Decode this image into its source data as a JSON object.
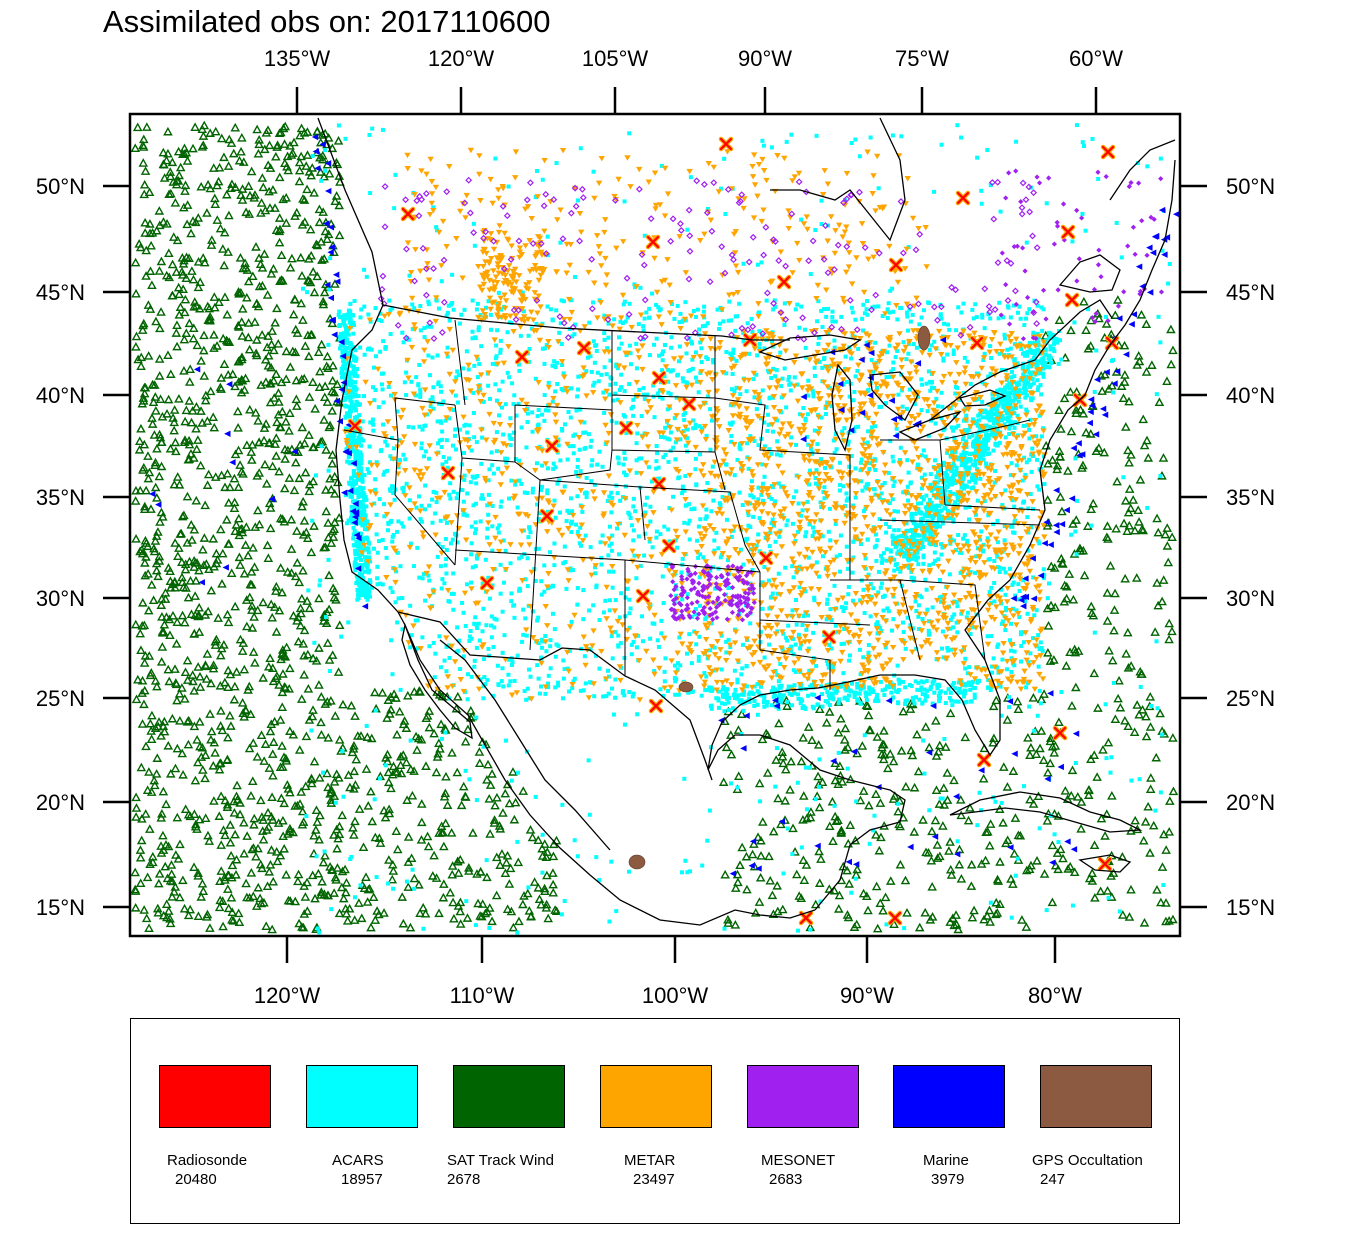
{
  "title": "Assimilated obs on: 2017110600",
  "top_axis_labels": [
    "135°W",
    "120°W",
    "105°W",
    "90°W",
    "75°W",
    "60°W"
  ],
  "bottom_axis_labels": [
    "120°W",
    "110°W",
    "100°W",
    "90°W",
    "80°W"
  ],
  "lat_labels": [
    "50°N",
    "45°N",
    "40°N",
    "35°N",
    "30°N",
    "25°N",
    "20°N",
    "15°N"
  ],
  "legend": [
    {
      "label": "Radiosonde",
      "count": "20480",
      "color": "#ff0000"
    },
    {
      "label": "ACARS",
      "count": "18957",
      "color": "#00ffff"
    },
    {
      "label": "SAT Track Wind",
      "count": "2678",
      "color": "#006400"
    },
    {
      "label": "METAR",
      "count": "23497",
      "color": "#ffa500"
    },
    {
      "label": "MESONET",
      "count": "2683",
      "color": "#a020f0"
    },
    {
      "label": "Marine",
      "count": "3979",
      "color": "#0000ff"
    },
    {
      "label": "GPS Occultation",
      "count": "247",
      "color": "#8b5a41"
    }
  ],
  "colors": {
    "radiosonde": "#ff0000",
    "radiosonde_outline": "#ffa500",
    "acars": "#00ffff",
    "sat_track_wind": "#006400",
    "metar": "#ffa500",
    "mesonet": "#a020f0",
    "marine": "#0000ff",
    "gps": "#8b5a41"
  }
}
